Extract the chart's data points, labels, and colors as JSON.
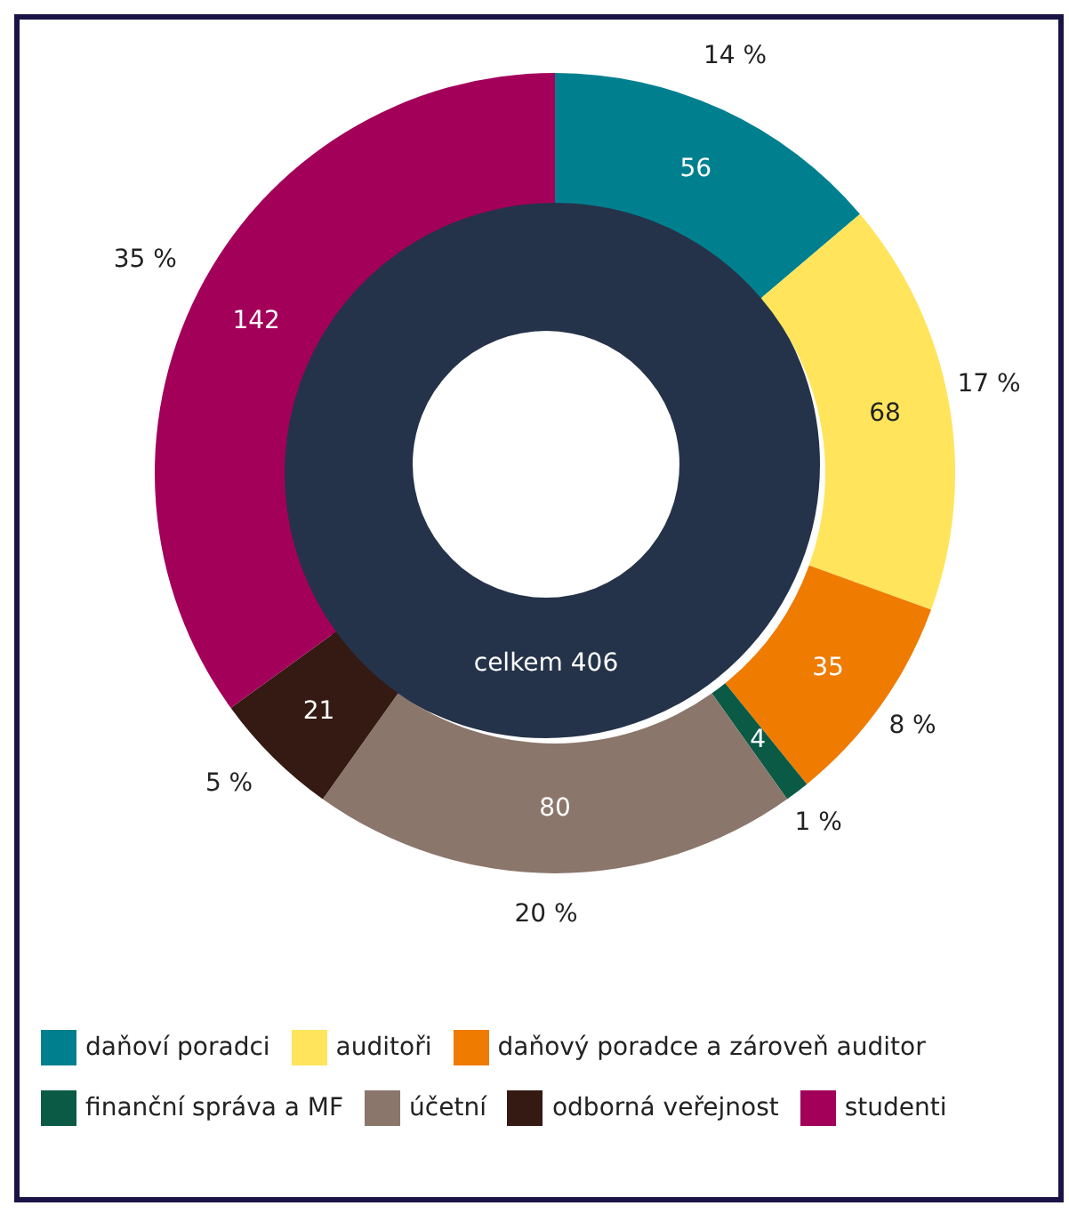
{
  "chart_data": {
    "type": "donut",
    "categories": [
      "daňoví poradci",
      "auditoři",
      "daňový poradce a zároveň auditor",
      "finanční správa a MF",
      "účetní",
      "odborná veřejnost",
      "studenti"
    ],
    "values": [
      56,
      68,
      35,
      4,
      80,
      21,
      142
    ],
    "colors": [
      "#00808f",
      "#ffe45c",
      "#ef7b00",
      "#0a5a45",
      "#8b766b",
      "#341a12",
      "#a3005a"
    ],
    "data_labels": true,
    "annotations": [
      "celkem 406",
      {
        "text": "14 %",
        "x": "daňoví poradci"
      },
      {
        "text": "17 %",
        "x": "auditoři"
      },
      {
        "text": "8 %",
        "x": "daňový poradce a zároveň auditor"
      },
      {
        "text": "1 %",
        "x": "finanční správa a MF"
      },
      {
        "text": "20 %",
        "x": "účetní"
      },
      {
        "text": "5 %",
        "x": "odborná veřejnost"
      },
      {
        "text": "35 %",
        "x": "studenti"
      }
    ],
    "legend": "bottom"
  }
}
